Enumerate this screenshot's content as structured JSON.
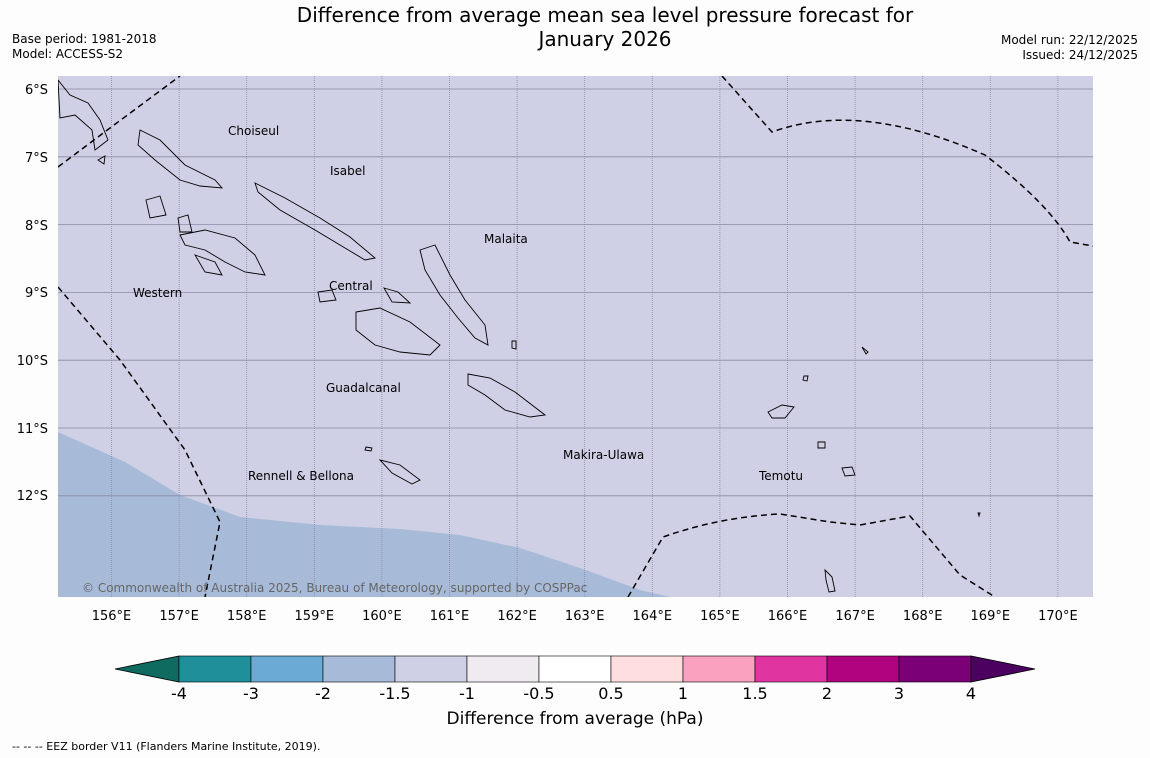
{
  "header": {
    "title_line1": "Difference from average mean sea level pressure forecast for",
    "title_line2": "January 2026",
    "base_period": "Base period: 1981-2018",
    "model": "Model: ACCESS-S2",
    "model_run": "Model run: 22/12/2025",
    "issued": "Issued: 24/12/2025"
  },
  "map": {
    "lat_labels": [
      "6°S",
      "7°S",
      "8°S",
      "9°S",
      "10°S",
      "11°S",
      "12°S"
    ],
    "lon_labels": [
      "156°E",
      "157°E",
      "158°E",
      "159°E",
      "160°E",
      "161°E",
      "162°E",
      "163°E",
      "164°E",
      "165°E",
      "166°E",
      "167°E",
      "168°E",
      "169°E",
      "170°E"
    ],
    "region_labels": [
      "Choiseul",
      "Isabel",
      "Malaita",
      "Western",
      "Central",
      "Guadalcanal",
      "Makira-Ulawa",
      "Rennell & Bellona",
      "Temotu"
    ],
    "copyright": "© Commonwealth of Australia 2025, Bureau of Meteorology, supported by COSPPac",
    "colors": {
      "background_anomaly": "#cfd0e5",
      "lower_anomaly": "#a7bbd8",
      "grid": "#8a8aa5"
    }
  },
  "colorbar": {
    "title": "Difference from average (hPa)",
    "ticks": [
      "-4",
      "-3",
      "-2",
      "-1.5",
      "-1",
      "-0.5",
      "0.5",
      "1",
      "1.5",
      "2",
      "3",
      "4"
    ],
    "colors": [
      "#1f8f99",
      "#6aaad3",
      "#a7bbd8",
      "#cfd0e5",
      "#efebf0",
      "#ffffff",
      "#fedede",
      "#f9a1be",
      "#e034a0",
      "#b0037f",
      "#7b0077"
    ],
    "extend_low_color": "#0f6a60",
    "extend_high_color": "#4c0060"
  },
  "legend": {
    "eez_note": "--  --  -- EEZ border V11 (Flanders Marine Institute, 2019)."
  }
}
